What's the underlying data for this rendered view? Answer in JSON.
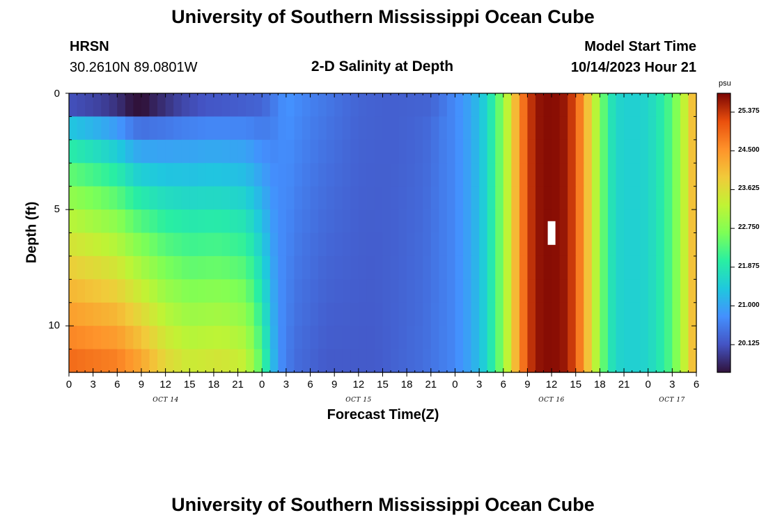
{
  "header": {
    "title": "University of Southern Mississippi Ocean Cube",
    "station": "HRSN",
    "coords": "30.2610N  89.0801W",
    "plot_title": "2-D Salinity at Depth",
    "start_label": "Model Start Time",
    "start_value": "10/14/2023 Hour 21"
  },
  "footer": {
    "title": "University of Southern Mississippi Ocean Cube"
  },
  "colorbar": {
    "unit": "psu",
    "ticks": [
      "25.375",
      "24.500",
      "23.625",
      "22.750",
      "21.875",
      "21.000",
      "20.125"
    ]
  },
  "chart_data": {
    "type": "heatmap",
    "xlabel": "Forecast Time(Z)",
    "ylabel": "Depth (ft)",
    "x_tick_labels": [
      "0",
      "3",
      "6",
      "9",
      "12",
      "15",
      "18",
      "21",
      "0",
      "3",
      "6",
      "9",
      "12",
      "15",
      "18",
      "21",
      "0",
      "3",
      "6",
      "9",
      "12",
      "15",
      "18",
      "21",
      "0",
      "3",
      "6"
    ],
    "x_date_labels": [
      "OCT 14",
      "OCT 15",
      "OCT 16",
      "OCT 17"
    ],
    "y_tick_labels": [
      "0",
      "5",
      "10"
    ],
    "xlim_hours": [
      0,
      78
    ],
    "ylim_ft": [
      0,
      12
    ],
    "zlim_psu": [
      19.5,
      25.8
    ],
    "depth_levels_ft": [
      0,
      1,
      2,
      3,
      4,
      5,
      6,
      7,
      8,
      9,
      10,
      11
    ],
    "time_step_hours": 1,
    "note_marker": {
      "hour": 60,
      "depth_ft": 6
    },
    "surface_profile": [
      [
        0,
        20.1
      ],
      [
        4,
        19.95
      ],
      [
        6,
        19.8
      ],
      [
        8,
        19.5
      ],
      [
        9,
        19.45
      ],
      [
        10,
        19.6
      ],
      [
        12,
        19.8
      ],
      [
        14,
        20.0
      ],
      [
        17,
        20.15
      ],
      [
        20,
        20.2
      ],
      [
        24,
        20.3
      ],
      [
        27,
        20.8
      ],
      [
        30,
        20.6
      ],
      [
        36,
        20.3
      ],
      [
        40,
        20.25
      ],
      [
        45,
        20.3
      ],
      [
        48,
        20.7
      ],
      [
        50,
        21.0
      ],
      [
        52,
        21.6
      ],
      [
        54,
        22.8
      ],
      [
        55,
        23.7
      ],
      [
        56,
        24.5
      ],
      [
        57,
        25.2
      ],
      [
        58,
        25.65
      ],
      [
        60,
        25.75
      ],
      [
        62,
        25.6
      ],
      [
        63,
        25.1
      ],
      [
        64,
        24.4
      ],
      [
        65,
        23.6
      ],
      [
        66,
        22.8
      ],
      [
        67,
        22.0
      ],
      [
        68,
        21.6
      ],
      [
        70,
        21.5
      ],
      [
        72,
        21.6
      ],
      [
        74,
        22.0
      ],
      [
        76,
        22.9
      ],
      [
        77,
        23.7
      ],
      [
        78,
        24.3
      ]
    ],
    "bottom_profile": [
      [
        0,
        24.9
      ],
      [
        6,
        24.7
      ],
      [
        9,
        24.3
      ],
      [
        12,
        23.7
      ],
      [
        15,
        23.4
      ],
      [
        19,
        23.5
      ],
      [
        22,
        23.3
      ],
      [
        24,
        22.3
      ],
      [
        25,
        21.5
      ],
      [
        26,
        20.8
      ],
      [
        28,
        20.4
      ],
      [
        32,
        20.2
      ],
      [
        38,
        20.2
      ],
      [
        44,
        20.4
      ],
      [
        47,
        20.6
      ]
    ],
    "blend_ramp_hours": [
      0,
      30,
      40,
      47
    ],
    "blend_ramp_power": [
      0.55,
      0.95,
      1.0,
      0.0
    ]
  }
}
